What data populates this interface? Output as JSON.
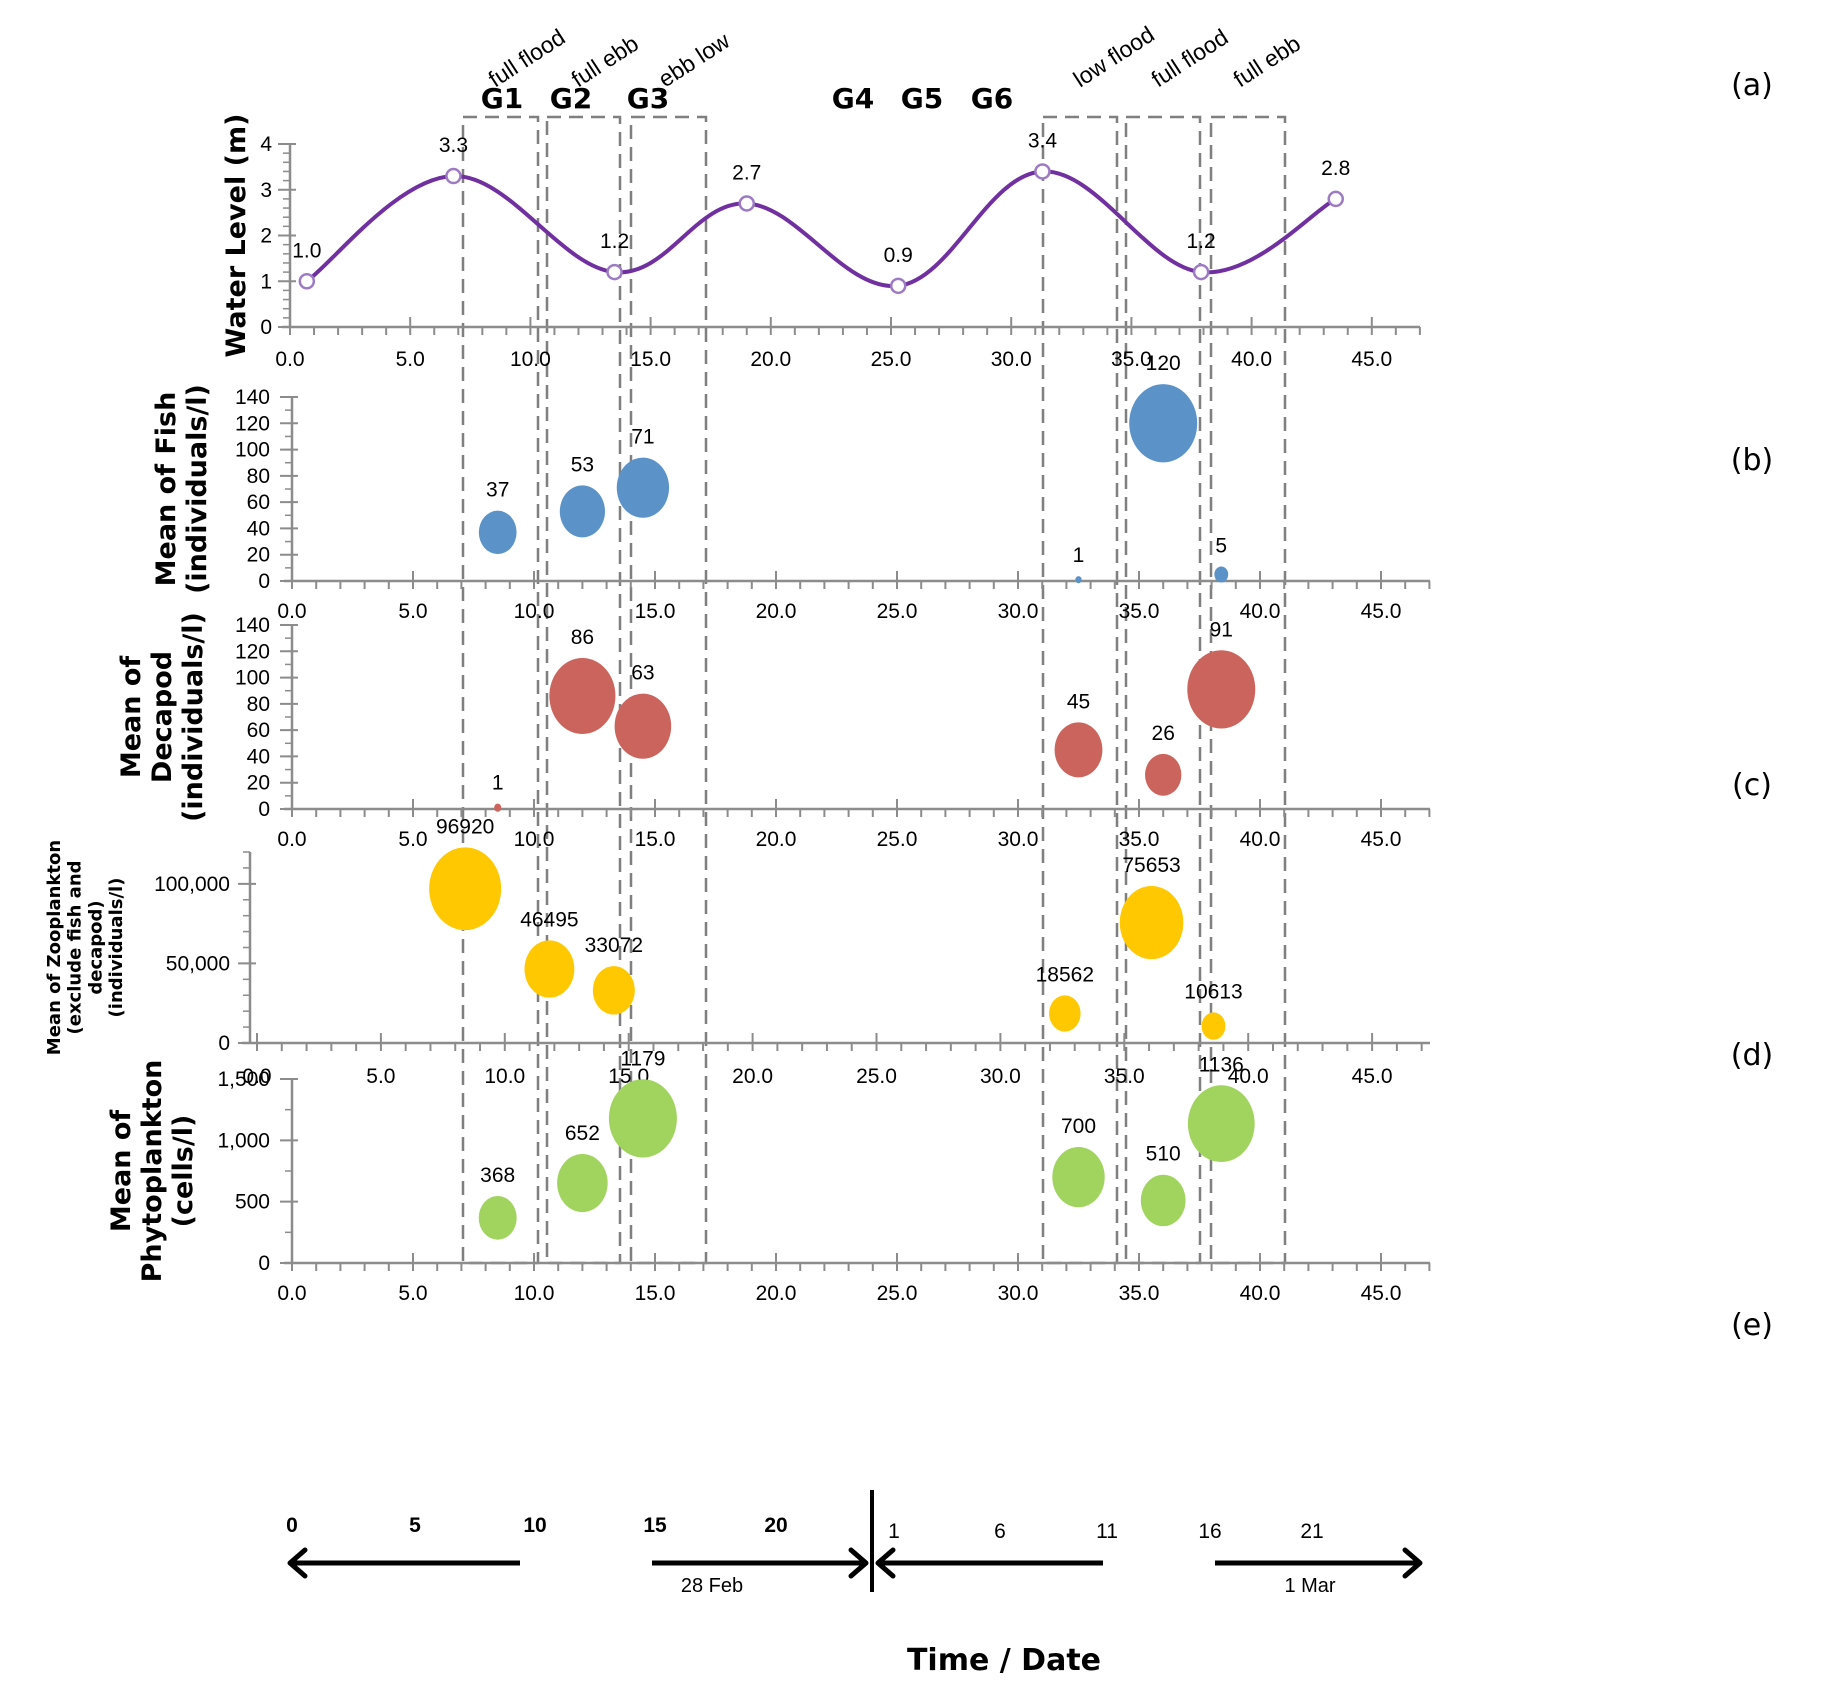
{
  "chart_data": [
    {
      "id": "a",
      "type": "line",
      "panel_label": "(a)",
      "ylabel": "Water Level (m)",
      "xlim": [
        0,
        47
      ],
      "ylim": [
        0,
        4
      ],
      "xticks": [
        "0.0",
        "5.0",
        "10.0",
        "15.0",
        "20.0",
        "25.0",
        "30.0",
        "35.0",
        "40.0",
        "45.0"
      ],
      "yticks": [
        "0",
        "1",
        "2",
        "3",
        "4"
      ],
      "color": "#7030A0",
      "points": [
        {
          "x": 0.7,
          "y": 1.0,
          "label": "1.0"
        },
        {
          "x": 6.8,
          "y": 3.3,
          "label": "3.3"
        },
        {
          "x": 13.5,
          "y": 1.2,
          "label": "1.2"
        },
        {
          "x": 19.0,
          "y": 2.7,
          "label": "2.7"
        },
        {
          "x": 25.3,
          "y": 0.9,
          "label": "0.9"
        },
        {
          "x": 31.3,
          "y": 3.4,
          "label": "3.4"
        },
        {
          "x": 37.9,
          "y": 1.2,
          "label": "1.2"
        },
        {
          "x": 43.5,
          "y": 2.8,
          "label": "2.8"
        }
      ]
    },
    {
      "id": "b",
      "type": "scatter",
      "panel_label": "(b)",
      "ylabel": [
        "Mean of Fish",
        "(individuals/l)"
      ],
      "xlim": [
        0,
        47
      ],
      "ylim": [
        0,
        140
      ],
      "xticks": [
        "0.0",
        "5.0",
        "10.0",
        "15.0",
        "20.0",
        "25.0",
        "30.0",
        "35.0",
        "40.0",
        "45.0"
      ],
      "yticks": [
        "0",
        "20",
        "40",
        "60",
        "80",
        "100",
        "120",
        "140"
      ],
      "color": "#5B93C8",
      "points": [
        {
          "x": 8.5,
          "y": 37,
          "label": "37"
        },
        {
          "x": 12.0,
          "y": 53,
          "label": "53"
        },
        {
          "x": 14.5,
          "y": 71,
          "label": "71"
        },
        {
          "x": 32.5,
          "y": 1,
          "label": "1"
        },
        {
          "x": 36.0,
          "y": 120,
          "label": "120"
        },
        {
          "x": 38.4,
          "y": 5,
          "label": "5"
        }
      ]
    },
    {
      "id": "c",
      "type": "scatter",
      "panel_label": "(c)",
      "ylabel": [
        "Mean of",
        "Decapod",
        "(individuals/l)"
      ],
      "xlim": [
        0,
        47
      ],
      "ylim": [
        0,
        140
      ],
      "xticks": [
        "0.0",
        "5.0",
        "10.0",
        "15.0",
        "20.0",
        "25.0",
        "30.0",
        "35.0",
        "40.0",
        "45.0"
      ],
      "yticks": [
        "0",
        "20",
        "40",
        "60",
        "80",
        "100",
        "120",
        "140"
      ],
      "color": "#CC645E",
      "points": [
        {
          "x": 8.5,
          "y": 1,
          "label": "1"
        },
        {
          "x": 12.0,
          "y": 86,
          "label": "86"
        },
        {
          "x": 14.5,
          "y": 63,
          "label": "63"
        },
        {
          "x": 32.5,
          "y": 45,
          "label": "45"
        },
        {
          "x": 36.0,
          "y": 26,
          "label": "26"
        },
        {
          "x": 38.4,
          "y": 91,
          "label": "91"
        }
      ]
    },
    {
      "id": "d",
      "type": "scatter",
      "panel_label": "(d)",
      "ylabel": [
        "Mean of Zooplankton",
        "(exclude fish and",
        "decapod)",
        "(individuals/l)"
      ],
      "xlim": [
        0,
        47
      ],
      "ylim": [
        0,
        120000
      ],
      "xticks": [
        "0.0",
        "5.0",
        "10.0",
        "15.0",
        "20.0",
        "25.0",
        "30.0",
        "35.0",
        "40.0",
        "45.0"
      ],
      "yticks": [
        "0",
        "50,000",
        "100,000"
      ],
      "color": "#FFC800",
      "points": [
        {
          "x": 8.4,
          "y": 96920,
          "label": "96920"
        },
        {
          "x": 11.8,
          "y": 46495,
          "label": "46495"
        },
        {
          "x": 14.4,
          "y": 33072,
          "label": "33072"
        },
        {
          "x": 32.6,
          "y": 18562,
          "label": "18562"
        },
        {
          "x": 36.1,
          "y": 75653,
          "label": "75653"
        },
        {
          "x": 38.6,
          "y": 10613,
          "label": "10613"
        }
      ]
    },
    {
      "id": "e",
      "type": "scatter",
      "panel_label": "(e)",
      "ylabel": [
        "Mean of",
        "Phytoplankton",
        "(cells/l)"
      ],
      "xlim": [
        0,
        47
      ],
      "ylim": [
        0,
        1500
      ],
      "xticks": [
        "0.0",
        "5.0",
        "10.0",
        "15.0",
        "20.0",
        "25.0",
        "30.0",
        "35.0",
        "40.0",
        "45.0"
      ],
      "yticks": [
        "0",
        "500",
        "1,000",
        "1,500"
      ],
      "color": "#A1D35F",
      "points": [
        {
          "x": 8.5,
          "y": 368,
          "label": "368"
        },
        {
          "x": 12.0,
          "y": 652,
          "label": "652"
        },
        {
          "x": 14.5,
          "y": 1179,
          "label": "1179"
        },
        {
          "x": 32.5,
          "y": 700,
          "label": "700"
        },
        {
          "x": 36.0,
          "y": 510,
          "label": "510"
        },
        {
          "x": 38.4,
          "y": 1136,
          "label": "1136"
        }
      ]
    }
  ],
  "groups": [
    {
      "label": "G1",
      "phase": "full flood",
      "x_start": 7.0,
      "x_end": 10.1
    },
    {
      "label": "G2",
      "phase": "full ebb",
      "x_start": 10.5,
      "x_end": 13.6
    },
    {
      "label": "G3",
      "phase": "ebb low",
      "x_start": 14.0,
      "x_end": 17.1
    },
    {
      "label": "G4",
      "phase": "low flood",
      "x_start": 31.3,
      "x_end": 34.4
    },
    {
      "label": "G5",
      "phase": "full flood",
      "x_start": 34.8,
      "x_end": 37.9
    },
    {
      "label": "G6",
      "phase": "full ebb",
      "x_start": 38.3,
      "x_end": 41.4
    }
  ],
  "time_axis": {
    "title": "Time / Date",
    "feb_ticks": [
      "0",
      "5",
      "10",
      "15",
      "20"
    ],
    "mar_ticks": [
      "1",
      "6",
      "11",
      "16",
      "21"
    ],
    "feb_label": "28 Feb",
    "mar_label": "1 Mar"
  }
}
